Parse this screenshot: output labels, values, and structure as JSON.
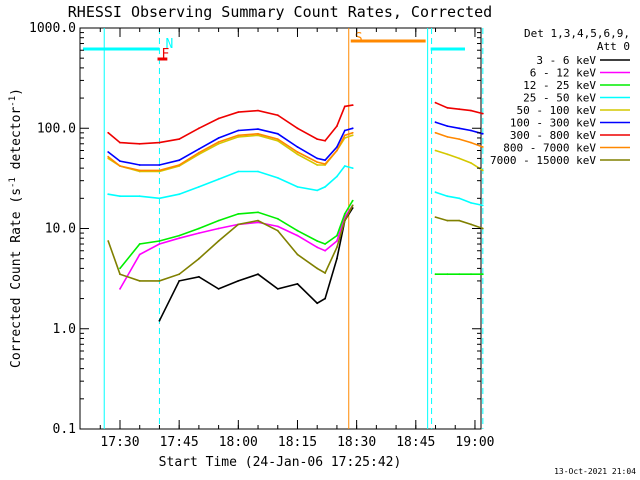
{
  "chart_data": {
    "type": "line",
    "title": "RHESSI Observing Summary Count Rates, Corrected",
    "xlabel": "Start Time (24-Jan-06 17:25:42)",
    "ylabel": "Corrected Count Rate (s",
    "ylabel_sup1": "-1",
    "ylabel_mid": " detector",
    "ylabel_sup2": "-1",
    "ylabel_end": ")",
    "yscale": "log",
    "ylim": [
      0.1,
      1000
    ],
    "xlim_minutes": [
      17.4,
      19.05
    ],
    "yticks": [
      {
        "value": 1000,
        "label": "1000.0"
      },
      {
        "value": 100,
        "label": "100.0"
      },
      {
        "value": 10,
        "label": "10.0"
      },
      {
        "value": 1,
        "label": "1.0"
      },
      {
        "value": 0.1,
        "label": "0.1"
      }
    ],
    "xticks": [
      {
        "value": "17:30",
        "label": "17:30"
      },
      {
        "value": "17:45",
        "label": "17:45"
      },
      {
        "value": "18:00",
        "label": "18:00"
      },
      {
        "value": "18:15",
        "label": "18:15"
      },
      {
        "value": "18:30",
        "label": "18:30"
      },
      {
        "value": "18:45",
        "label": "18:45"
      },
      {
        "value": "19:00",
        "label": "19:00"
      }
    ],
    "legend_header": [
      "Det 1,3,4,5,6,9,",
      "Att 0"
    ],
    "legend_placement": "right",
    "series": [
      {
        "name": "3 - 6 keV",
        "color": "#000000"
      },
      {
        "name": "6 - 12 keV",
        "color": "#ff00ff"
      },
      {
        "name": "12 - 25 keV",
        "color": "#00ee00"
      },
      {
        "name": "25 - 50 keV",
        "color": "#00ffff"
      },
      {
        "name": "50 - 100 keV",
        "color": "#d4c800"
      },
      {
        "name": "100 - 300 keV",
        "color": "#0000ff"
      },
      {
        "name": "300 - 800 keV",
        "color": "#ee0000"
      },
      {
        "name": "800 - 7000 keV",
        "color": "#ff8800"
      },
      {
        "name": "7000 - 15000 keV",
        "color": "#808000"
      }
    ],
    "annotations": [
      {
        "label": "N",
        "time": "17:40",
        "color": "#00ffff"
      },
      {
        "label": "F",
        "time": "17:39",
        "color": "#ee0000"
      },
      {
        "label": "S",
        "time": "18:28",
        "color": "#ff8800"
      }
    ],
    "vertical_markers": [
      {
        "time": "17:26",
        "color": "#00ffff",
        "style": "solid"
      },
      {
        "time": "17:40",
        "color": "#00ffff",
        "style": "dashed"
      },
      {
        "time": "18:28",
        "color": "#ff8800",
        "style": "solid"
      },
      {
        "time": "18:48",
        "color": "#00ffff",
        "style": "solid"
      },
      {
        "time": "18:49",
        "color": "#00ffff",
        "style": "dashed"
      },
      {
        "time": "19:02",
        "color": "#00ffff",
        "style": "dashed"
      }
    ],
    "segment1_times": [
      "17:27",
      "17:30",
      "17:35",
      "17:40",
      "17:45",
      "17:50",
      "17:55",
      "18:00",
      "18:05",
      "18:10",
      "18:15",
      "18:20",
      "18:22",
      "18:25",
      "18:27",
      "18:29"
    ],
    "segment2_times": [
      "18:50",
      "18:53",
      "18:56",
      "18:59",
      "19:02"
    ],
    "series_values": {
      "3 - 6 keV": {
        "seg1": [
          null,
          null,
          null,
          1.2,
          3.0,
          3.3,
          2.5,
          3.0,
          3.5,
          2.5,
          2.8,
          1.8,
          2.0,
          5.0,
          12.0,
          16.0
        ],
        "seg2": []
      },
      "6 - 12 keV": {
        "seg1": [
          null,
          2.5,
          5.5,
          7.0,
          8.0,
          9.0,
          10.0,
          11.0,
          11.5,
          10.5,
          8.5,
          6.5,
          6.0,
          7.5,
          13.0,
          17.0
        ],
        "seg2": []
      },
      "12 - 25 keV": {
        "seg1": [
          null,
          4.0,
          7.0,
          7.5,
          8.5,
          10.0,
          12.0,
          14.0,
          14.5,
          12.5,
          9.5,
          7.5,
          7.0,
          8.5,
          14.0,
          19.0
        ],
        "seg2": [
          3.5,
          3.5,
          3.5,
          3.5,
          3.5
        ]
      },
      "25 - 50 keV": {
        "seg1": [
          22,
          21,
          21,
          20,
          22,
          26,
          31,
          37,
          37,
          32,
          26,
          24,
          26,
          33,
          42,
          40
        ],
        "seg2": [
          23,
          21,
          20,
          18,
          17
        ]
      },
      "50 - 100 keV": {
        "seg1": [
          50,
          42,
          37,
          37,
          42,
          55,
          70,
          82,
          85,
          75,
          55,
          43,
          43,
          60,
          80,
          85
        ],
        "seg2": [
          60,
          55,
          50,
          45,
          38
        ]
      },
      "100 - 300 keV": {
        "seg1": [
          58,
          47,
          43,
          43,
          48,
          62,
          80,
          95,
          98,
          88,
          65,
          50,
          48,
          65,
          95,
          100
        ],
        "seg2": [
          115,
          105,
          100,
          95,
          88
        ]
      },
      "300 - 800 keV": {
        "seg1": [
          90,
          72,
          70,
          72,
          78,
          100,
          125,
          145,
          150,
          135,
          100,
          78,
          75,
          105,
          165,
          170
        ],
        "seg2": [
          180,
          160,
          155,
          150,
          140
        ]
      },
      "800 - 7000 keV": {
        "seg1": [
          52,
          42,
          38,
          38,
          43,
          57,
          73,
          85,
          88,
          78,
          58,
          46,
          44,
          60,
          85,
          90
        ],
        "seg2": [
          90,
          82,
          78,
          72,
          65
        ]
      },
      "7000 - 15000 keV": {
        "seg1": [
          7.5,
          3.5,
          3.0,
          3.0,
          3.5,
          5.0,
          7.5,
          11.0,
          12.0,
          9.5,
          5.5,
          4.0,
          3.6,
          6.5,
          12.0,
          17.0
        ],
        "seg2": [
          13,
          12,
          12,
          11,
          10
        ]
      }
    },
    "grid": false
  },
  "footer": {
    "date": "13-Oct-2021 21:04"
  }
}
